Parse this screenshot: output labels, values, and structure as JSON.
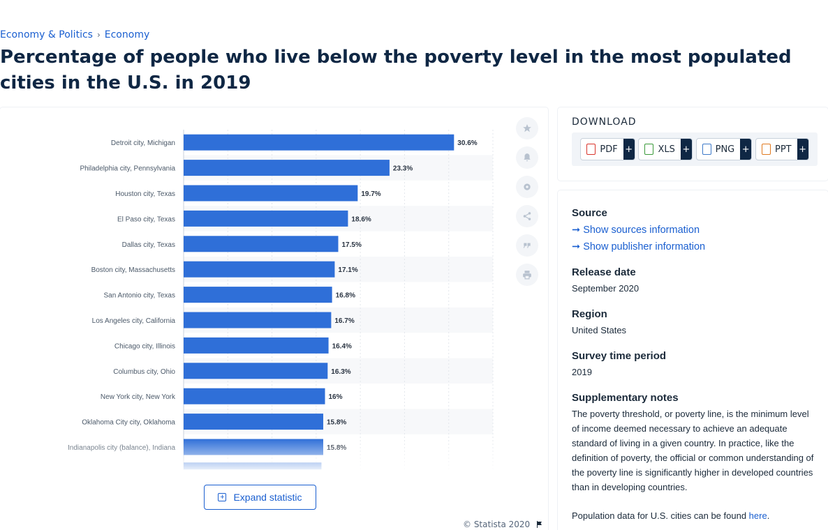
{
  "breadcrumb": {
    "items": [
      "Economy & Politics",
      "Economy"
    ],
    "separator": "›"
  },
  "page_title": "Percentage of people who live below the poverty level in the most populated cities in the U.S. in 2019",
  "chart_data": {
    "type": "bar",
    "orientation": "horizontal",
    "categories": [
      "Detroit city, Michigan",
      "Philadelphia city, Pennsylvania",
      "Houston city, Texas",
      "El Paso city, Texas",
      "Dallas city, Texas",
      "Boston city, Massachusetts",
      "San Antonio city, Texas",
      "Los Angeles city, California",
      "Chicago city, Illinois",
      "Columbus city, Ohio",
      "New York city, New York",
      "Oklahoma City city, Oklahoma",
      "Indianapolis city (balance), Indiana"
    ],
    "values": [
      30.6,
      23.3,
      19.7,
      18.6,
      17.5,
      17.1,
      16.8,
      16.7,
      16.4,
      16.3,
      16,
      15.8,
      15.8
    ],
    "value_labels": [
      "30.6%",
      "23.3%",
      "19.7%",
      "18.6%",
      "17.5%",
      "17.1%",
      "16.8%",
      "16.7%",
      "16.4%",
      "16.3%",
      "16%",
      "15.8%",
      "15.8%"
    ],
    "xlim": [
      0,
      35
    ],
    "grid": true,
    "bar_color": "#2f6fd8",
    "truncated_next_value": 15.6
  },
  "tools": [
    "star-icon",
    "bell-icon",
    "gear-icon",
    "share-icon",
    "quote-icon",
    "print-icon"
  ],
  "expand_label": "Expand statistic",
  "copyright": "© Statista 2020",
  "download": {
    "title": "DOWNLOAD",
    "formats": [
      {
        "label": "PDF",
        "color": "#d9342b"
      },
      {
        "label": "XLS",
        "color": "#3a9a3a"
      },
      {
        "label": "PNG",
        "color": "#3d7ac9"
      },
      {
        "label": "PPT",
        "color": "#e07a20"
      }
    ],
    "plus": "+"
  },
  "info": {
    "source_label": "Source",
    "show_sources": "Show sources information",
    "show_publisher": "Show publisher information",
    "release_label": "Release date",
    "release_value": "September 2020",
    "region_label": "Region",
    "region_value": "United States",
    "survey_label": "Survey time period",
    "survey_value": "2019",
    "notes_label": "Supplementary notes",
    "notes_text": "The poverty threshold, or poverty line, is the minimum level of income deemed necessary to achieve an adequate standard of living in a given country. In practice, like the definition of poverty, the official or common understanding of the poverty line is significantly higher in developed countries than in developing countries.",
    "notes_text2_prefix": "Population data for U.S. cities can be found ",
    "notes_link": "here",
    "notes_text2_suffix": "."
  }
}
